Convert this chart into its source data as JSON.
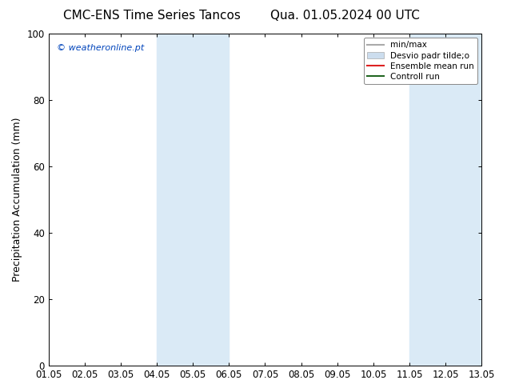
{
  "title_left": "CMC-ENS Time Series Tancos",
  "title_right": "Qua. 01.05.2024 00 UTC",
  "xlabel": "",
  "ylabel": "Precipitation Accumulation (mm)",
  "xlim": [
    1.05,
    13.05
  ],
  "ylim": [
    0,
    100
  ],
  "xticks": [
    1.05,
    2.05,
    3.05,
    4.05,
    5.05,
    6.05,
    7.05,
    8.05,
    9.05,
    10.05,
    11.05,
    12.05,
    13.05
  ],
  "xtick_labels": [
    "01.05",
    "02.05",
    "03.05",
    "04.05",
    "05.05",
    "06.05",
    "07.05",
    "08.05",
    "09.05",
    "10.05",
    "11.05",
    "12.05",
    "13.05"
  ],
  "yticks": [
    0,
    20,
    40,
    60,
    80,
    100
  ],
  "shaded_regions": [
    {
      "xmin": 4.05,
      "xmax": 6.05,
      "color": "#daeaf6"
    },
    {
      "xmin": 11.05,
      "xmax": 13.05,
      "color": "#daeaf6"
    }
  ],
  "watermark_text": "© weatheronline.pt",
  "watermark_color": "#0044bb",
  "background_color": "#ffffff",
  "legend_entries": [
    {
      "label": "min/max",
      "color": "#aaaaaa",
      "type": "line",
      "linewidth": 1.5
    },
    {
      "label": "Desvio padr tilde;o",
      "color": "#ccddee",
      "type": "bar",
      "linewidth": 6
    },
    {
      "label": "Ensemble mean run",
      "color": "#dd2222",
      "type": "line",
      "linewidth": 1.5
    },
    {
      "label": "Controll run",
      "color": "#226622",
      "type": "line",
      "linewidth": 1.5
    }
  ],
  "title_fontsize": 11,
  "axis_fontsize": 9,
  "tick_fontsize": 8.5,
  "legend_fontsize": 7.5,
  "watermark_fontsize": 8
}
